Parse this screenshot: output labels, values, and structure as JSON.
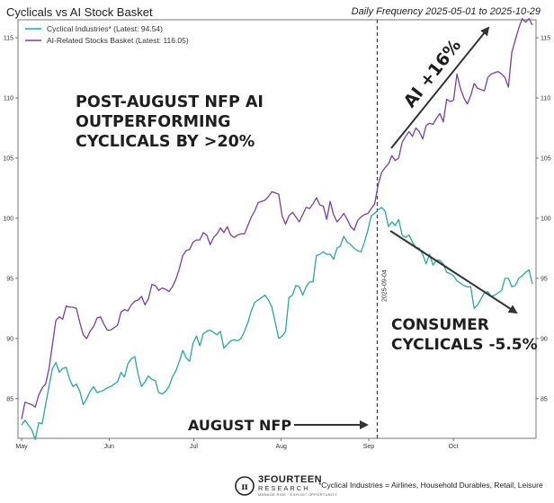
{
  "chart_data": {
    "type": "line",
    "title": "Cyclicals vs AI Stock Basket",
    "subtitle": "Daily Frequency 2025-05-01 to 2025-10-29",
    "x_start": "2025-05-01",
    "x_end": "2025-10-29",
    "x_tick_labels": [
      "May",
      "Jun",
      "Jul",
      "Aug",
      "Sep",
      "Oct"
    ],
    "y_ticks": [
      85,
      90,
      95,
      100,
      105,
      110,
      115
    ],
    "ylim": [
      81.7,
      116.5
    ],
    "series": [
      {
        "name": "Cyclical Industries* (Latest: 94.54)",
        "color": "#2aa79b",
        "values": [
          82.8,
          83.2,
          82.8,
          82.4,
          81.6,
          83.0,
          82.9,
          84.5,
          86.0,
          87.5,
          88.0,
          87.2,
          87.5,
          87.6,
          86.6,
          86.0,
          86.2,
          85.6,
          84.5,
          85.0,
          85.6,
          86.0,
          85.5,
          85.6,
          85.7,
          85.9,
          86.0,
          86.2,
          86.4,
          87.2,
          86.8,
          87.9,
          88.3,
          88.5,
          87.0,
          86.0,
          86.4,
          86.9,
          86.6,
          86.5,
          85.5,
          85.4,
          85.6,
          86.0,
          86.8,
          87.3,
          88.1,
          89.0,
          88.4,
          88.1,
          89.6,
          90.2,
          89.4,
          90.4,
          90.6,
          90.7,
          90.5,
          90.3,
          90.6,
          89.2,
          89.5,
          89.8,
          89.9,
          89.8,
          90.0,
          90.6,
          91.3,
          92.3,
          93.0,
          93.2,
          93.4,
          93.6,
          93.2,
          92.6,
          91.3,
          90.0,
          90.2,
          90.6,
          93.4,
          93.6,
          94.4,
          94.3,
          93.6,
          94.3,
          94.7,
          94.7,
          96.9,
          97.0,
          97.2,
          97.0,
          97.0,
          96.6,
          97.5,
          97.7,
          98.5,
          98.0,
          97.8,
          97.5,
          97.3,
          97.2,
          98.0,
          99.0,
          100.2,
          100.4,
          100.7,
          100.9,
          100.6,
          99.3,
          99.7,
          99.4,
          99.9,
          98.6,
          98.4,
          98.6,
          98.0,
          97.6,
          97.5,
          97.0,
          96.2,
          97.0,
          96.1,
          96.5,
          96.5,
          96.2,
          95.5,
          95.4,
          95.2,
          94.8,
          94.6,
          94.4,
          94.3,
          94.3,
          92.5,
          92.8,
          93.3,
          93.8,
          93.9,
          93.5,
          93.6,
          93.8,
          94.0,
          95.0,
          95.0,
          94.3,
          94.4,
          95.0,
          95.2,
          95.5,
          95.7,
          94.54
        ]
      },
      {
        "name": "AI-Related Stocks Basket (Latest: 116.05)",
        "color": "#7b3f9e",
        "values": [
          83.3,
          84.7,
          84.6,
          84.5,
          84.3,
          85.3,
          85.9,
          86.2,
          87.5,
          89.5,
          91.5,
          91.8,
          91.6,
          92.7,
          92.6,
          92.6,
          92.5,
          91.3,
          90.3,
          90.0,
          90.6,
          91.0,
          91.7,
          91.8,
          91.2,
          90.7,
          90.7,
          90.9,
          91.1,
          92.2,
          92.4,
          92.3,
          92.8,
          93.1,
          93.2,
          93.5,
          92.8,
          93.3,
          94.5,
          94.4,
          94.0,
          94.2,
          94.1,
          93.9,
          94.3,
          94.9,
          95.8,
          96.9,
          97.3,
          97.4,
          98.0,
          98.2,
          98.2,
          98.8,
          98.6,
          97.8,
          98.4,
          98.7,
          99.2,
          98.8,
          99.3,
          98.6,
          98.4,
          98.6,
          98.7,
          98.7,
          99.4,
          100.1,
          100.6,
          101.3,
          101.4,
          101.5,
          101.8,
          102.2,
          102.1,
          102.0,
          100.2,
          99.5,
          100.2,
          100.5,
          100.1,
          99.7,
          100.3,
          100.9,
          100.8,
          101.2,
          101.7,
          101.1,
          101.0,
          99.9,
          101.4,
          100.3,
          99.7,
          100.0,
          100.4,
          99.9,
          99.3,
          99.0,
          99.8,
          100.1,
          100.3,
          100.4,
          100.8,
          101.2,
          102.8,
          103.8,
          104.2,
          104.5,
          105.2,
          104.8,
          105.0,
          106.3,
          106.8,
          107.2,
          106.8,
          107.5,
          107.2,
          106.6,
          107.7,
          107.9,
          107.8,
          108.3,
          108.7,
          108.0,
          109.9,
          109.7,
          109.8,
          112.0,
          110.8,
          110.0,
          109.5,
          110.2,
          111.2,
          110.8,
          110.7,
          110.6,
          111.7,
          112.0,
          112.1,
          112.2,
          112.0,
          111.7,
          110.9,
          113.8,
          114.8,
          115.8,
          116.6,
          116.3,
          116.6,
          116.05
        ]
      }
    ],
    "vline_label": "2025-09-04",
    "annotations": {
      "ai_headline": [
        "POST-AUGUST NFP AI",
        "OUTPERFORMING",
        "CYCLICALS BY >20%"
      ],
      "ai_gain": "AI +16%",
      "cyclical_drop": [
        "CONSUMER",
        "CYCLICALS -5.5%"
      ],
      "nfp": "AUGUST NFP"
    }
  },
  "footer": {
    "brand_name": "3FOURTEEN",
    "brand_sub": "RESEARCH",
    "brand_tagline": "MANAGE RISK · EXPLOIT OPPORTUNITY",
    "footnote": "*Cyclical Industries = Airlines, Household Durables, Retail, Leisure"
  },
  "colors": {
    "cyclical": "#2aa79b",
    "ai": "#7b3f9e",
    "arrow": "#333333"
  }
}
